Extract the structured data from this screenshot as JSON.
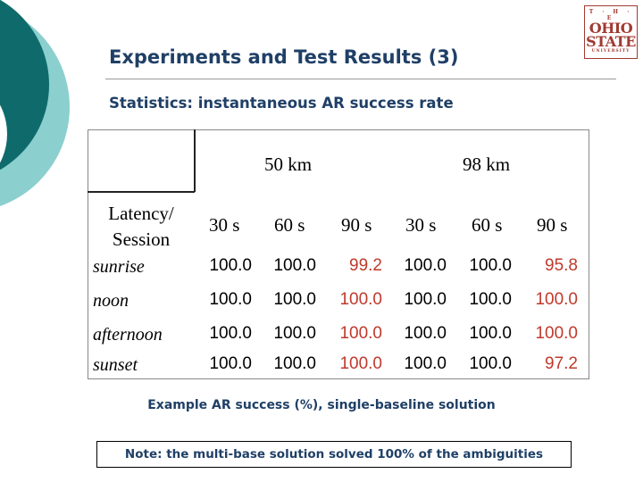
{
  "slide": {
    "title": "Experiments and Test Results (3)",
    "subtitle": "Statistics: instantaneous AR success rate",
    "logo": {
      "top": "T · H · E",
      "line1": "OHIO",
      "line2": "STATE",
      "line3": "UNIVERSITY"
    }
  },
  "table": {
    "groups": [
      "50 km",
      "98 km"
    ],
    "corner_label": [
      "Latency/",
      "Session"
    ],
    "columns": [
      "30 s",
      "60 s",
      "90 s",
      "30 s",
      "60 s",
      "90 s"
    ],
    "rows": [
      {
        "label": "sunrise",
        "values": [
          "100.0",
          "100.0",
          "99.2",
          "100.0",
          "100.0",
          "95.8"
        ]
      },
      {
        "label": "noon",
        "values": [
          "100.0",
          "100.0",
          "100.0",
          "100.0",
          "100.0",
          "100.0"
        ]
      },
      {
        "label": "afternoon",
        "values": [
          "100.0",
          "100.0",
          "100.0",
          "100.0",
          "100.0",
          "100.0"
        ]
      },
      {
        "label": "sunset",
        "values": [
          "100.0",
          "100.0",
          "100.0",
          "100.0",
          "100.0",
          "97.2"
        ]
      }
    ],
    "highlight_color": "#c0392b",
    "caption": "Example AR success (%), single-baseline solution"
  },
  "note": "Note: the multi-base solution solved 100% of the ambiguities",
  "colors": {
    "title": "#1f3f66",
    "teal_dark": "#0f6b6b",
    "teal_light": "#8ccfcf"
  }
}
